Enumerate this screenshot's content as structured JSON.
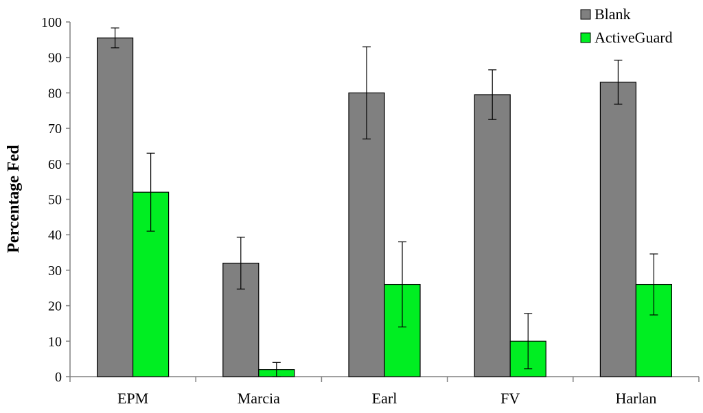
{
  "chart_data": {
    "type": "bar",
    "title": "",
    "xlabel": "",
    "ylabel": "Percentage Fed",
    "ylim": [
      0,
      100
    ],
    "yticks": [
      0,
      10,
      20,
      30,
      40,
      50,
      60,
      70,
      80,
      90,
      100
    ],
    "categories": [
      "EPM",
      "Marcia",
      "Earl",
      "FV",
      "Harlan"
    ],
    "series": [
      {
        "name": "Blank",
        "color": "#808080",
        "values": [
          95.5,
          32,
          80,
          79.5,
          83
        ],
        "errors": [
          2.8,
          7.3,
          13,
          7,
          6.2
        ]
      },
      {
        "name": "ActiveGuard",
        "color": "#00ee22",
        "values": [
          52,
          2,
          26,
          10,
          26
        ],
        "errors": [
          11,
          2,
          12,
          7.8,
          8.6
        ]
      }
    ],
    "legend": "top-right"
  }
}
